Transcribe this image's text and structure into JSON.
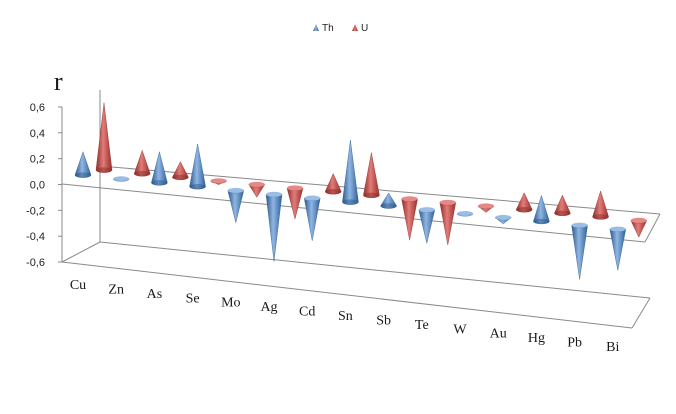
{
  "chart_data": {
    "type": "bar",
    "bar_shape": "cone",
    "view": "3d",
    "ylabel": "r",
    "ylim": [
      -0.6,
      0.6
    ],
    "yticks": [
      "0,6",
      "0,4",
      "0,2",
      "0,0",
      "-0,2",
      "-0,4",
      "-0,6"
    ],
    "ytick_values": [
      0.6,
      0.4,
      0.2,
      0.0,
      -0.2,
      -0.4,
      -0.6
    ],
    "categories": [
      "Cu",
      "Zn",
      "As",
      "Se",
      "Mo",
      "Ag",
      "Cd",
      "Sn",
      "Sb",
      "Te",
      "W",
      "Au",
      "Hg",
      "Pb",
      "Bi"
    ],
    "legend_position": "top-center",
    "series": [
      {
        "name": "Th",
        "color": "#4a7ebb",
        "values": [
          0.18,
          -0.02,
          0.24,
          0.33,
          -0.25,
          -0.52,
          -0.33,
          0.48,
          0.1,
          -0.26,
          -0.02,
          -0.05,
          0.2,
          -0.42,
          -0.32
        ]
      },
      {
        "name": "U",
        "color": "#c0504d",
        "values": [
          0.52,
          0.18,
          0.12,
          -0.03,
          -0.1,
          -0.24,
          0.14,
          0.33,
          -0.32,
          -0.33,
          -0.05,
          0.13,
          0.14,
          0.2,
          -0.13
        ]
      }
    ]
  }
}
